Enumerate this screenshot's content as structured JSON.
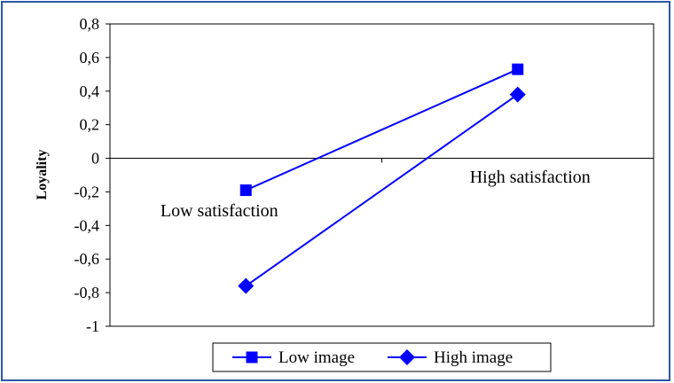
{
  "chart_data": {
    "type": "line",
    "categories": [
      "Low satisfaction",
      "High satisfaction"
    ],
    "series": [
      {
        "name": "Low image",
        "values": [
          -0.19,
          0.53
        ],
        "marker": "square",
        "color": "#0000ff"
      },
      {
        "name": "High image",
        "values": [
          -0.76,
          0.38
        ],
        "marker": "diamond",
        "color": "#0000ff"
      }
    ],
    "title": "",
    "xlabel": "",
    "ylabel": "Loyality",
    "ylim": [
      -1,
      0.8
    ],
    "yticks": [
      "0,8",
      "0,6",
      "0,4",
      "0,2",
      "0",
      "-0,2",
      "-0,4",
      "-0,6",
      "-0,8",
      "-1"
    ],
    "legend_position": "bottom",
    "grid": false
  }
}
